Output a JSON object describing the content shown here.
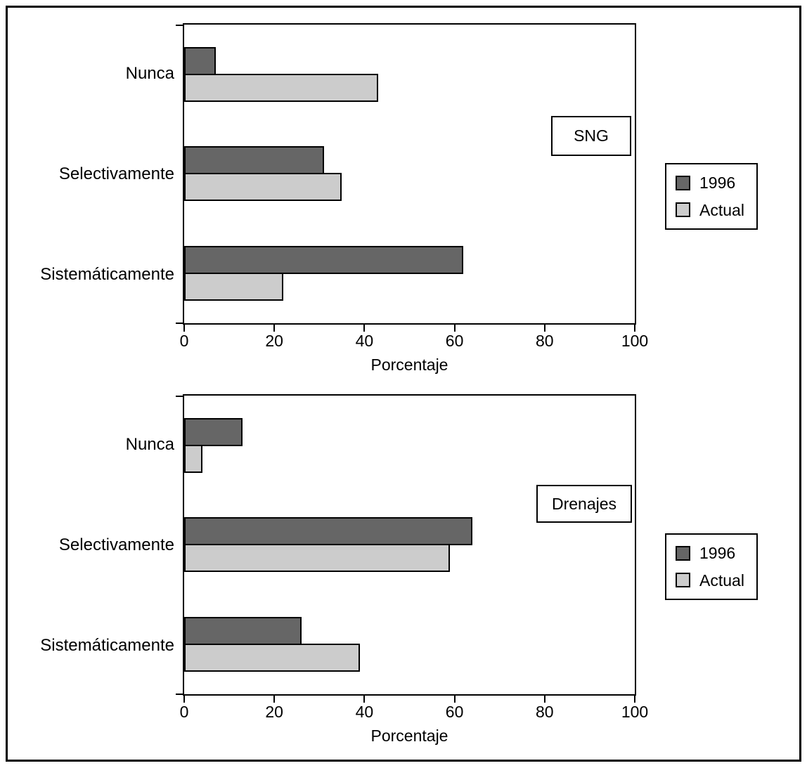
{
  "chart_data": [
    {
      "type": "bar",
      "orientation": "horizontal",
      "panel_label": "SNG",
      "categories": [
        "Nunca",
        "Selectivamente",
        "Sistemáticamente"
      ],
      "series": [
        {
          "name": "1996",
          "color": "#666666",
          "values": [
            7,
            31,
            62
          ]
        },
        {
          "name": "Actual",
          "color": "#cccccc",
          "values": [
            43,
            35,
            22
          ]
        }
      ],
      "xlabel": "Porcentaje",
      "xlim": [
        0,
        100
      ],
      "xticks": [
        0,
        20,
        40,
        60,
        80,
        100
      ],
      "grid": false,
      "legend_position": "right-outside",
      "bar_outline_color": "#000000"
    },
    {
      "type": "bar",
      "orientation": "horizontal",
      "panel_label": "Drenajes",
      "categories": [
        "Nunca",
        "Selectivamente",
        "Sistemáticamente"
      ],
      "series": [
        {
          "name": "1996",
          "color": "#666666",
          "values": [
            13,
            64,
            26
          ]
        },
        {
          "name": "Actual",
          "color": "#cccccc",
          "values": [
            4,
            59,
            39
          ]
        }
      ],
      "xlabel": "Porcentaje",
      "xlim": [
        0,
        100
      ],
      "xticks": [
        0,
        20,
        40,
        60,
        80,
        100
      ],
      "grid": false,
      "legend_position": "right-outside",
      "bar_outline_color": "#000000"
    }
  ],
  "colors": {
    "series_1996": "#666666",
    "series_actual": "#cccccc",
    "outline": "#000000",
    "background": "#ffffff"
  }
}
